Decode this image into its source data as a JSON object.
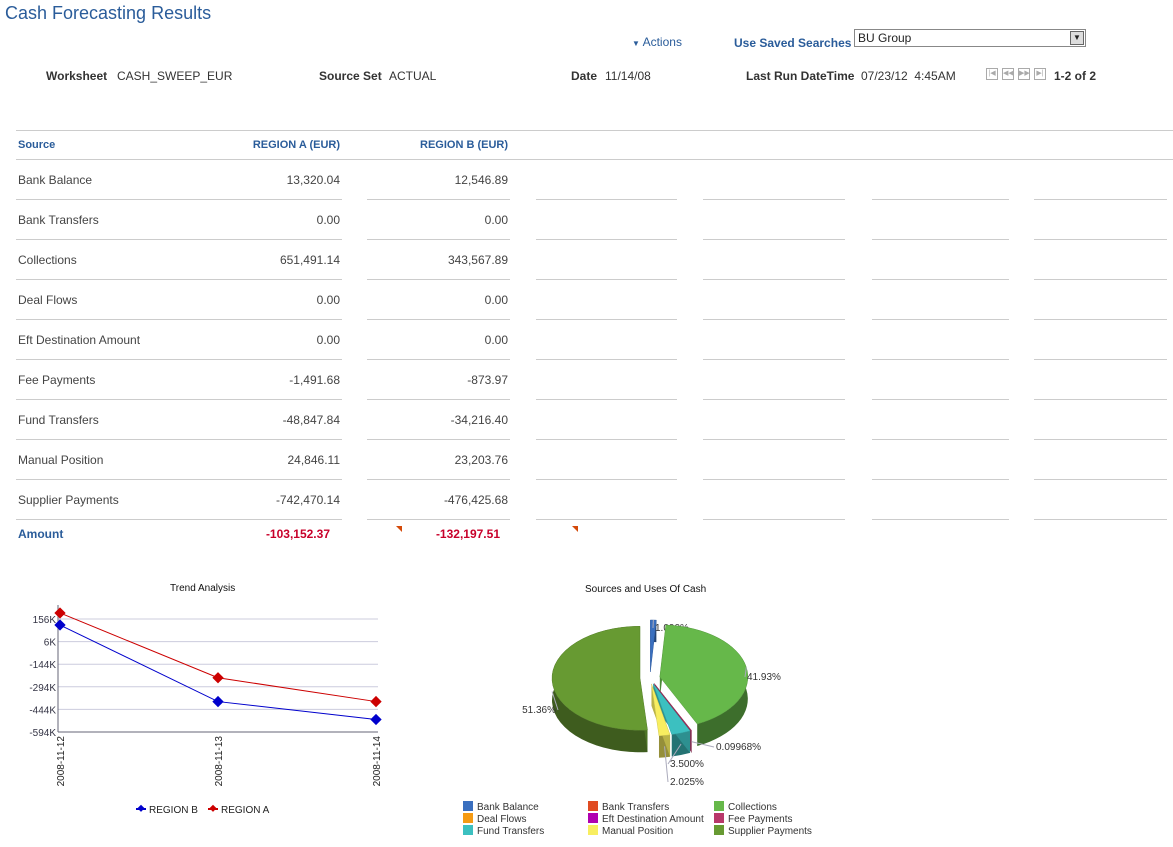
{
  "page_title": "Cash Forecasting Results",
  "actions_label": "Actions",
  "saved_searches": {
    "label": "Use Saved Searches",
    "value": "BU Group"
  },
  "header": {
    "worksheet_label": "Worksheet",
    "worksheet": "CASH_SWEEP_EUR",
    "source_set_label": "Source Set",
    "source_set": "ACTUAL",
    "date_label": "Date",
    "date": "11/14/08",
    "last_run_label": "Last Run DateTime",
    "last_run": "07/23/12  4:45AM",
    "pagination": "1-2 of 2"
  },
  "table": {
    "columns": [
      "Source",
      "REGION A (EUR)",
      "REGION B (EUR)"
    ],
    "rows": [
      [
        "Bank Balance",
        "13,320.04",
        "12,546.89"
      ],
      [
        "Bank Transfers",
        "0.00",
        "0.00"
      ],
      [
        "Collections",
        "651,491.14",
        "343,567.89"
      ],
      [
        "Deal Flows",
        "0.00",
        "0.00"
      ],
      [
        "Eft Destination Amount",
        "0.00",
        "0.00"
      ],
      [
        "Fee Payments",
        "-1,491.68",
        "-873.97"
      ],
      [
        "Fund Transfers",
        "-48,847.84",
        "-34,216.40"
      ],
      [
        "Manual Position",
        "24,846.11",
        "23,203.76"
      ],
      [
        "Supplier Payments",
        "-742,470.14",
        "-476,425.68"
      ]
    ],
    "total": [
      "Amount",
      "-103,152.37",
      "-132,197.51"
    ]
  },
  "chart_data": [
    {
      "type": "line",
      "title": "Trend Analysis",
      "x": [
        "2008-11-12",
        "2008-11-13",
        "2008-11-14"
      ],
      "yticks": [
        "156K",
        "6K",
        "-144K",
        "-294K",
        "-444K",
        "-594K"
      ],
      "ylim": [
        -594,
        196
      ],
      "grid": true,
      "legend": "bottom",
      "series": [
        {
          "name": "REGION B",
          "color": "#0000cc",
          "values": [
            116,
            -392,
            -511
          ]
        },
        {
          "name": "REGION A",
          "color": "#cc0000",
          "values": [
            196,
            -234,
            -392
          ]
        }
      ]
    },
    {
      "type": "pie",
      "title": "Sources and Uses Of Cash",
      "legend": "bottom",
      "slices": [
        {
          "name": "Bank Balance",
          "value": 1.09,
          "label": "1.090%",
          "color": "#3a6fbf"
        },
        {
          "name": "Bank Transfers",
          "value": 0,
          "label": "",
          "color": "#e04b22"
        },
        {
          "name": "Collections",
          "value": 41.93,
          "label": "41.93%",
          "color": "#66b84a"
        },
        {
          "name": "Deal Flows",
          "value": 0,
          "label": "",
          "color": "#f59b14"
        },
        {
          "name": "Eft Destination Amount",
          "value": 0,
          "label": "",
          "color": "#b000b0"
        },
        {
          "name": "Fee Payments",
          "value": 0.09968,
          "label": "0.09968%",
          "color": "#b8386a"
        },
        {
          "name": "Fund Transfers",
          "value": 3.5,
          "label": "3.500%",
          "color": "#3cc0c0"
        },
        {
          "name": "Manual Position",
          "value": 2.025,
          "label": "2.025%",
          "color": "#f8ee60"
        },
        {
          "name": "Supplier Payments",
          "value": 51.36,
          "label": "51.36%",
          "color": "#679a32"
        }
      ]
    }
  ]
}
